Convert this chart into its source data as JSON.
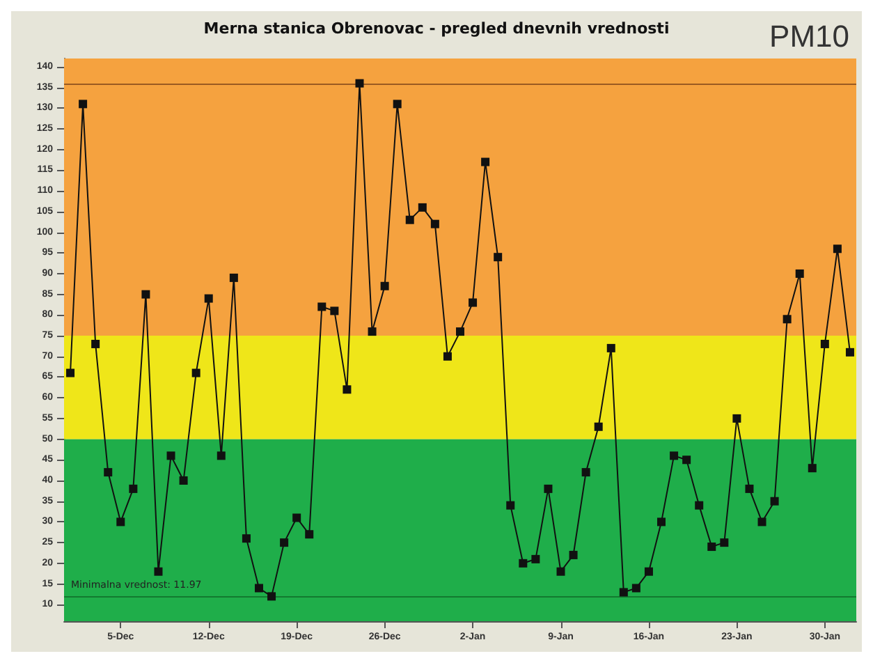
{
  "chart_data": {
    "type": "line",
    "title": "Merna stanica Obrenovac - pregled dnevnih vrednosti",
    "annotations": [
      "PM10"
    ],
    "categories": [
      null,
      null,
      null,
      null,
      "5-Dec",
      null,
      null,
      null,
      null,
      null,
      null,
      "12-Dec",
      null,
      null,
      null,
      null,
      null,
      null,
      "19-Dec",
      null,
      null,
      null,
      null,
      null,
      null,
      "26-Dec",
      null,
      null,
      null,
      null,
      null,
      null,
      "2-Jan",
      null,
      null,
      null,
      null,
      null,
      null,
      "9-Jan",
      null,
      null,
      null,
      null,
      null,
      null,
      "16-Jan",
      null,
      null,
      null,
      null,
      null,
      null,
      "23-Jan",
      null,
      null,
      null,
      null,
      null,
      null,
      "30-Jan",
      null,
      null
    ],
    "series": [
      {
        "color": "#111111",
        "values": [
          66,
          131,
          73,
          42,
          30,
          38,
          85,
          18,
          46,
          40,
          66,
          84,
          46,
          89,
          26,
          14,
          12,
          25,
          31,
          27,
          82,
          81,
          62,
          136,
          76,
          87,
          131,
          103,
          106,
          102,
          70,
          76,
          83,
          117,
          94,
          34,
          20,
          21,
          38,
          18,
          22,
          42,
          53,
          72,
          13,
          14,
          18,
          30,
          46,
          45,
          34,
          24,
          25,
          55,
          38,
          30,
          35,
          79,
          90,
          43,
          73,
          96,
          71
        ]
      }
    ],
    "ylim": [
      6,
      142
    ],
    "yticks": [
      10,
      15,
      20,
      25,
      30,
      35,
      40,
      45,
      50,
      55,
      60,
      65,
      70,
      75,
      80,
      85,
      90,
      95,
      100,
      105,
      110,
      115,
      120,
      125,
      130,
      135,
      140
    ],
    "bands": [
      {
        "axis": "y",
        "from": 6,
        "to": 50,
        "color": "#1fae4a"
      },
      {
        "axis": "y",
        "from": 50,
        "to": 75,
        "color": "#efe619"
      },
      {
        "axis": "y",
        "from": 75,
        "to": 142,
        "color": "#f5a23f"
      }
    ],
    "ref_lines": [
      {
        "axis": "y",
        "value": 136,
        "label": null,
        "color": "#9a5a22"
      },
      {
        "axis": "y",
        "value": 11.97,
        "label": "Minimalna vrednost: 11.97",
        "color": "#137a30"
      }
    ],
    "marker": "square",
    "line_style": "solid",
    "grid": false
  }
}
